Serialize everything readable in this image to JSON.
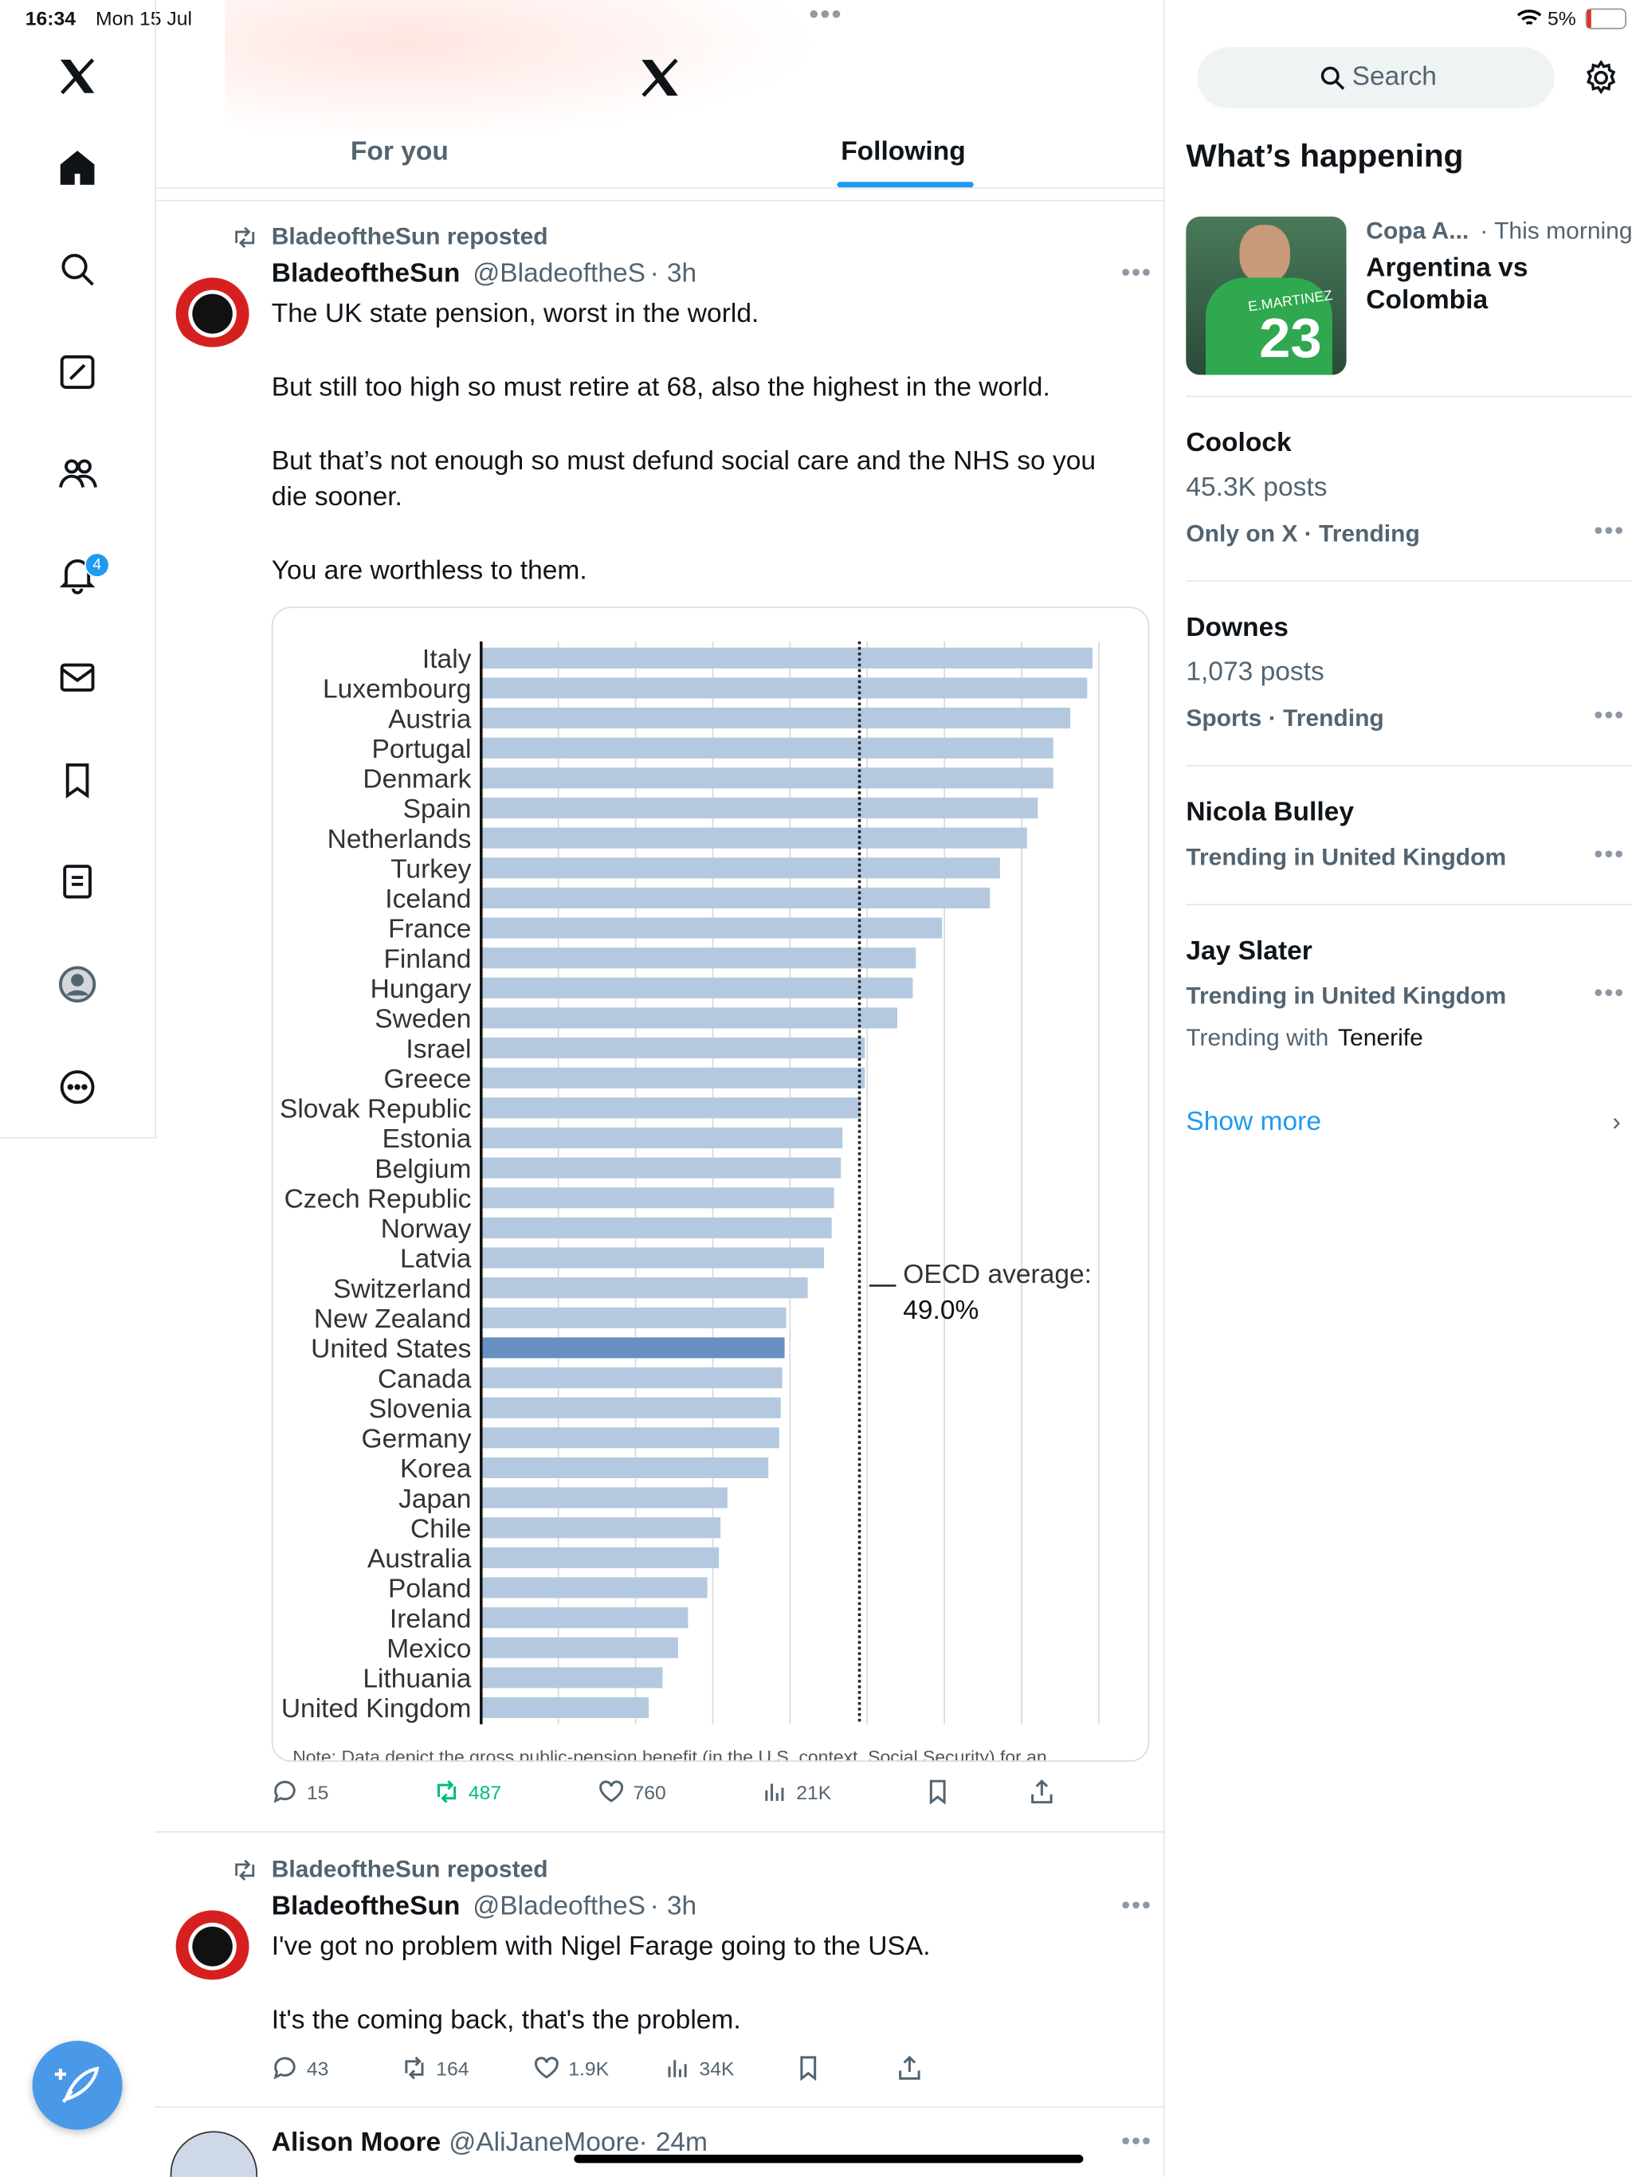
{
  "status_bar": {
    "time": "16:34",
    "date": "Mon 15 Jul",
    "battery": "5%"
  },
  "notification_badge": "4",
  "tabs": [
    "For you",
    "Following"
  ],
  "posts": [
    {
      "repost": "BladeoftheSun reposted",
      "name": "BladeoftheSun",
      "handle": "@BladeoftheS",
      "time": "3h",
      "text": [
        "The UK state pension, worst in the world.",
        "But still too high so must retire at 68, also the highest in the world.",
        "But that’s not enough so must defund social care and the NHS so you die sooner.",
        "You are worthless to them."
      ],
      "stats": {
        "replies": "15",
        "reposts": "487",
        "likes": "760",
        "views": "21K"
      }
    },
    {
      "repost": "BladeoftheSun reposted",
      "name": "BladeoftheSun",
      "handle": "@BladeoftheS",
      "time": "3h",
      "text": [
        "I've got no problem with Nigel Farage going to the USA.",
        "It's the coming back, that's the problem."
      ],
      "stats": {
        "replies": "43",
        "reposts": "164",
        "likes": "1.9K",
        "views": "34K"
      }
    },
    {
      "name": "Alison Moore",
      "handle": "@AliJaneMoore",
      "time": "24m"
    }
  ],
  "chart_data": {
    "type": "bar",
    "orientation": "horizontal",
    "categories": [
      "Italy",
      "Luxembourg",
      "Austria",
      "Portugal",
      "Denmark",
      "Spain",
      "Netherlands",
      "Turkey",
      "Iceland",
      "France",
      "Finland",
      "Hungary",
      "Sweden",
      "Israel",
      "Greece",
      "Slovak Republic",
      "Estonia",
      "Belgium",
      "Czech Republic",
      "Norway",
      "Latvia",
      "Switzerland",
      "New Zealand",
      "United States",
      "Canada",
      "Slovenia",
      "Germany",
      "Korea",
      "Japan",
      "Chile",
      "Australia",
      "Poland",
      "Ireland",
      "Mexico",
      "Lithuania",
      "United Kingdom"
    ],
    "values": [
      79.2,
      78.5,
      76.3,
      74.1,
      74.1,
      72.1,
      70.7,
      67.2,
      65.9,
      59.7,
      56.3,
      55.9,
      53.9,
      49.7,
      49.7,
      49.2,
      46.8,
      46.6,
      45.7,
      45.4,
      44.4,
      42.3,
      39.5,
      39.3,
      39.0,
      38.8,
      38.6,
      37.2,
      31.9,
      31.0,
      30.8,
      29.3,
      26.8,
      25.5,
      23.5,
      21.7
    ],
    "color": "#b4c9e0",
    "highlight": "United States",
    "highlight_color": "#6890c0",
    "xlim": [
      0,
      82
    ],
    "gridlines": [
      10,
      20,
      30,
      40,
      50,
      60,
      70,
      80
    ],
    "reference_line": {
      "value": 49.0,
      "label": "OECD average:",
      "value_label": "49.0%"
    },
    "note": "Note: Data depict the gross public-pension benefit (in the U.S. context, Social Security) for an"
  },
  "search": {
    "placeholder": "Search"
  },
  "whats_happening": {
    "title": "What’s happening",
    "featured": {
      "category": "Copa A...",
      "time": "· This morning",
      "title": "Argentina vs Colombia",
      "jersey_name": "E.MARTINEZ",
      "jersey_number": "23"
    },
    "trends": [
      {
        "name": "Coolock",
        "posts": "45.3K posts",
        "context": "Only on X · Trending"
      },
      {
        "name": "Downes",
        "posts": "1,073 posts",
        "context": "Sports · Trending"
      },
      {
        "name": "Nicola Bulley",
        "context": "Trending in United Kingdom"
      },
      {
        "name": "Jay Slater",
        "context": "Trending in United Kingdom",
        "with_label": "Trending with",
        "with": "Tenerife"
      }
    ],
    "show_more": "Show more"
  }
}
